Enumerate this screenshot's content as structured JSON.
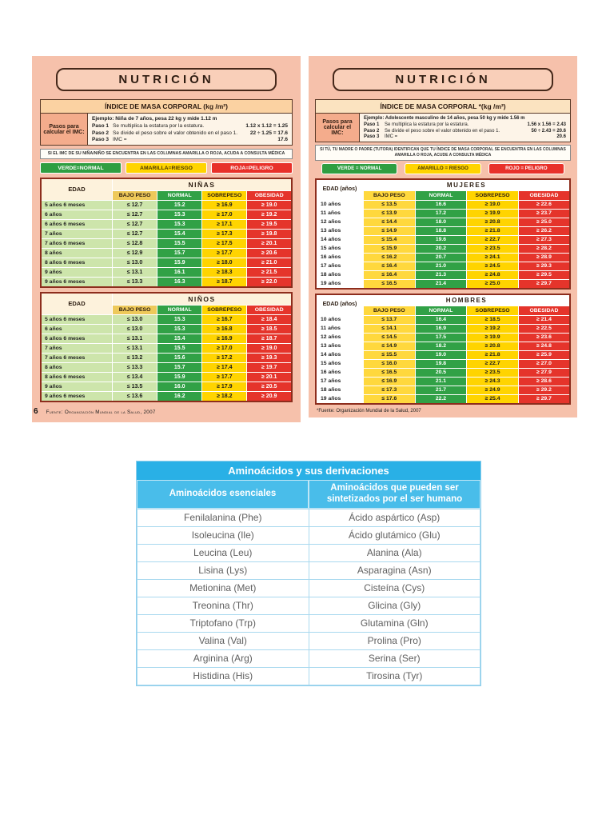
{
  "colors": {
    "panel_bg": "#f6c1ab",
    "green_normal": "#31a146",
    "yellow_risk": "#ffd400",
    "red_danger": "#e5342b",
    "amino_blue": "#29b0e6"
  },
  "page_number": "6",
  "left": {
    "title": "NUTRICIÓN",
    "imc_header": "ÍNDICE DE MASA CORPORAL  (kg /m²)",
    "steps_label": "Pasos para calcular el IMC:",
    "example": "Ejemplo: Niña de 7 años, pesa 22 kg y mide 1.12 m",
    "pasos": [
      {
        "label": "Paso 1",
        "text": "Se multiplica la estatura por la estatura.",
        "value": "1.12 x 1.12 = 1.25"
      },
      {
        "label": "Paso 2",
        "text": "Se divide el peso sobre el valor obtenido en el paso 1.",
        "value": "22 ÷ 1.25 = 17.6"
      },
      {
        "label": "Paso 3",
        "text": "IMC =",
        "value": "17.6"
      }
    ],
    "warning": "SI EL IMC DE SU NIÑA/NIÑO SE ENCUENTRA EN LAS COLUMNAS AMARILLA O ROJA, ACUDA A CONSULTA MÉDICA",
    "legend": [
      {
        "label": "VERDE=NORMAL"
      },
      {
        "label": "AMARILLA=RIESGO"
      },
      {
        "label": "ROJA=PELIGRO"
      }
    ],
    "tables": [
      {
        "slug": "ninas",
        "group": "NIÑAS",
        "edad_header": "EDAD",
        "columns": [
          "BAJO PESO",
          "NORMAL",
          "SOBREPESO",
          "OBESIDAD"
        ],
        "rows": [
          [
            "5 años 6 meses",
            "≤ 12.7",
            "15.2",
            "≥ 16.9",
            "≥ 19.0"
          ],
          [
            "6 años",
            "≤ 12.7",
            "15.3",
            "≥ 17.0",
            "≥ 19.2"
          ],
          [
            "6 años 6 meses",
            "≤ 12.7",
            "15.3",
            "≥ 17.1",
            "≥ 19.5"
          ],
          [
            "7 años",
            "≤ 12.7",
            "15.4",
            "≥ 17.3",
            "≥ 19.8"
          ],
          [
            "7 años 6 meses",
            "≤ 12.8",
            "15.5",
            "≥ 17.5",
            "≥ 20.1"
          ],
          [
            "8 años",
            "≤ 12.9",
            "15.7",
            "≥ 17.7",
            "≥ 20.6"
          ],
          [
            "8 años 6 meses",
            "≤ 13.0",
            "15.9",
            "≥ 18.0",
            "≥ 21.0"
          ],
          [
            "9 años",
            "≤ 13.1",
            "16.1",
            "≥ 18.3",
            "≥ 21.5"
          ],
          [
            "9 años 6 meses",
            "≤ 13.3",
            "16.3",
            "≥ 18.7",
            "≥ 22.0"
          ]
        ]
      },
      {
        "slug": "ninos",
        "group": "NIÑOS",
        "edad_header": "EDAD",
        "columns": [
          "BAJO PESO",
          "NORMAL",
          "SOBREPESO",
          "OBESIDAD"
        ],
        "rows": [
          [
            "5 años 6 meses",
            "≤ 13.0",
            "15.3",
            "≥ 16.7",
            "≥ 18.4"
          ],
          [
            "6 años",
            "≤ 13.0",
            "15.3",
            "≥ 16.8",
            "≥ 18.5"
          ],
          [
            "6 años 6 meses",
            "≤ 13.1",
            "15.4",
            "≥ 16.9",
            "≥ 18.7"
          ],
          [
            "7 años",
            "≤ 13.1",
            "15.5",
            "≥ 17.0",
            "≥ 19.0"
          ],
          [
            "7 años 6 meses",
            "≤ 13.2",
            "15.6",
            "≥ 17.2",
            "≥ 19.3"
          ],
          [
            "8 años",
            "≤ 13.3",
            "15.7",
            "≥ 17.4",
            "≥ 19.7"
          ],
          [
            "8 años 6 meses",
            "≤ 13.4",
            "15.9",
            "≥ 17.7",
            "≥ 20.1"
          ],
          [
            "9 años",
            "≤ 13.5",
            "16.0",
            "≥ 17.9",
            "≥ 20.5"
          ],
          [
            "9 años 6 meses",
            "≤ 13.6",
            "16.2",
            "≥ 18.2",
            "≥ 20.9"
          ]
        ]
      }
    ],
    "source": "Fuente: Organización Mundial de la Salud, 2007"
  },
  "right": {
    "title": "NUTRICIÓN",
    "imc_header": "ÍNDICE DE MASA CORPORAL   *(kg /m²)",
    "steps_label": "Pasos para calcular el IMC:",
    "example": "Ejemplo: Adolescente masculino de 14 años, pesa 50 kg y mide 1.56 m",
    "pasos": [
      {
        "label": "Paso 1",
        "text": "Se multiplica la estatura por la estatura.",
        "value": "1.56 x 1.56 = 2.43"
      },
      {
        "label": "Paso 2",
        "text": "Se divide el peso sobre el valor obtenido en el paso 1.",
        "value": "50 ÷ 2.43 = 20.6"
      },
      {
        "label": "Paso 3",
        "text": "IMC =",
        "value": "20.6"
      }
    ],
    "warning": "SI TÚ, TU MADRE O PADRE (TUTORA) IDENTIFICAN QUE TU ÍNDICE DE MASA CORPORAL SE ENCUENTRA EN LAS COLUMNAS AMARILLA O ROJA, ACUDE A CONSULTA MÉDICA",
    "legend": [
      {
        "label": "VERDE = NORMAL"
      },
      {
        "label": "AMARILLO = RIESGO"
      },
      {
        "label": "ROJO = PELIGRO"
      }
    ],
    "tables": [
      {
        "slug": "mujeres",
        "group": "MUJERES",
        "edad_header": "EDAD (años)",
        "columns": [
          "BAJO PESO",
          "NORMAL",
          "SOBREPESO",
          "OBESIDAD"
        ],
        "rows": [
          [
            "10 años",
            "≤ 13.5",
            "16.6",
            "≥ 19.0",
            "≥ 22.6"
          ],
          [
            "11 años",
            "≤ 13.9",
            "17.2",
            "≥ 19.9",
            "≥ 23.7"
          ],
          [
            "12 años",
            "≤ 14.4",
            "18.0",
            "≥ 20.8",
            "≥ 25.0"
          ],
          [
            "13 años",
            "≤ 14.9",
            "18.8",
            "≥ 21.8",
            "≥ 26.2"
          ],
          [
            "14 años",
            "≤ 15.4",
            "19.6",
            "≥ 22.7",
            "≥ 27.3"
          ],
          [
            "15 años",
            "≤ 15.9",
            "20.2",
            "≥ 23.5",
            "≥ 28.2"
          ],
          [
            "16 años",
            "≤ 16.2",
            "20.7",
            "≥ 24.1",
            "≥ 28.9"
          ],
          [
            "17 años",
            "≤ 16.4",
            "21.0",
            "≥ 24.5",
            "≥ 29.3"
          ],
          [
            "18 años",
            "≤ 16.4",
            "21.3",
            "≥ 24.8",
            "≥ 29.5"
          ],
          [
            "19 años",
            "≤ 16.5",
            "21.4",
            "≥ 25.0",
            "≥ 29.7"
          ]
        ]
      },
      {
        "slug": "hombres",
        "group": "HOMBRES",
        "edad_header": "EDAD (años)",
        "columns": [
          "BAJO PESO",
          "NORMAL",
          "SOBREPESO",
          "OBESIDAD"
        ],
        "rows": [
          [
            "10 años",
            "≤ 13.7",
            "16.4",
            "≥ 18.5",
            "≥ 21.4"
          ],
          [
            "11 años",
            "≤ 14.1",
            "16.9",
            "≥ 19.2",
            "≥ 22.5"
          ],
          [
            "12 años",
            "≤ 14.5",
            "17.5",
            "≥ 19.9",
            "≥ 23.6"
          ],
          [
            "13 años",
            "≤ 14.9",
            "18.2",
            "≥ 20.8",
            "≥ 24.8"
          ],
          [
            "14 años",
            "≤ 15.5",
            "19.0",
            "≥ 21.8",
            "≥ 25.9"
          ],
          [
            "15 años",
            "≤ 16.0",
            "19.8",
            "≥ 22.7",
            "≥ 27.0"
          ],
          [
            "16 años",
            "≤ 16.5",
            "20.5",
            "≥ 23.5",
            "≥ 27.9"
          ],
          [
            "17 años",
            "≤ 16.9",
            "21.1",
            "≥ 24.3",
            "≥ 28.6"
          ],
          [
            "18 años",
            "≤ 17.3",
            "21.7",
            "≥ 24.9",
            "≥ 29.2"
          ],
          [
            "19 años",
            "≤ 17.6",
            "22.2",
            "≥ 25.4",
            "≥ 29.7"
          ]
        ]
      }
    ],
    "source": "*Fuente: Organización Mundial de la Salud, 2007"
  },
  "amino": {
    "title": "Aminoácidos y sus derivaciones",
    "columns": [
      "Aminoácidos esenciales",
      "Aminoácidos que pueden ser sintetizados por el ser humano"
    ],
    "rows": [
      [
        "Fenilalanina (Phe)",
        "Ácido aspártico (Asp)"
      ],
      [
        "Isoleucina (Ile)",
        "Ácido glutámico (Glu)"
      ],
      [
        "Leucina (Leu)",
        "Alanina (Ala)"
      ],
      [
        "Lisina (Lys)",
        "Asparagina (Asn)"
      ],
      [
        "Metionina (Met)",
        "Cisteína (Cys)"
      ],
      [
        "Treonina (Thr)",
        "Glicina (Gly)"
      ],
      [
        "Triptofano (Trp)",
        "Glutamina (Gln)"
      ],
      [
        "Valina (Val)",
        "Prolina (Pro)"
      ],
      [
        "Arginina (Arg)",
        "Serina (Ser)"
      ],
      [
        "Histidina (His)",
        "Tirosina (Tyr)"
      ]
    ]
  }
}
